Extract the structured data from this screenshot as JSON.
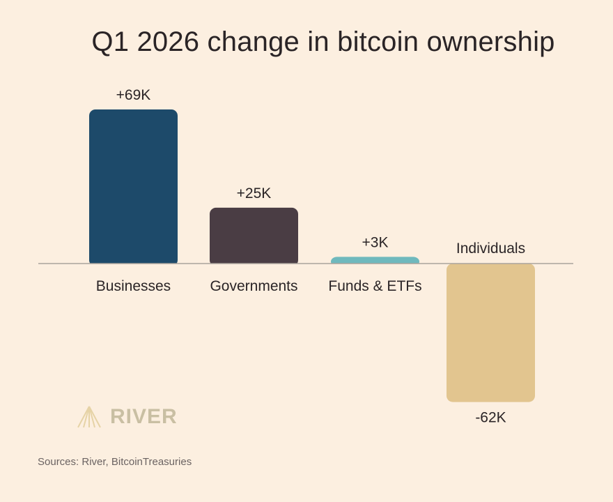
{
  "chart_data": {
    "type": "bar",
    "title": "Q1 2026 change in bitcoin ownership",
    "xlabel": "",
    "ylabel": "",
    "categories": [
      "Businesses",
      "Governments",
      "Funds & ETFs",
      "Individuals"
    ],
    "values": [
      69000,
      25000,
      3000,
      -62000
    ],
    "value_labels": [
      "+69K",
      "+25K",
      "+3K",
      "-62K"
    ],
    "colors": [
      "#1d4a6a",
      "#4a3d44",
      "#6fb9bd",
      "#e2c58f"
    ],
    "ylim": [
      -62000,
      69000
    ],
    "grid": false,
    "legend": "none"
  },
  "brand": {
    "name": "RIVER",
    "icon": "river-logo-icon",
    "color": "#c9bfa3"
  },
  "footer": {
    "sources": "Sources: River, BitcoinTreasuries"
  },
  "theme": {
    "background": "#fcefe0",
    "baseline": "#a9a39c",
    "text": "#2a2426"
  }
}
